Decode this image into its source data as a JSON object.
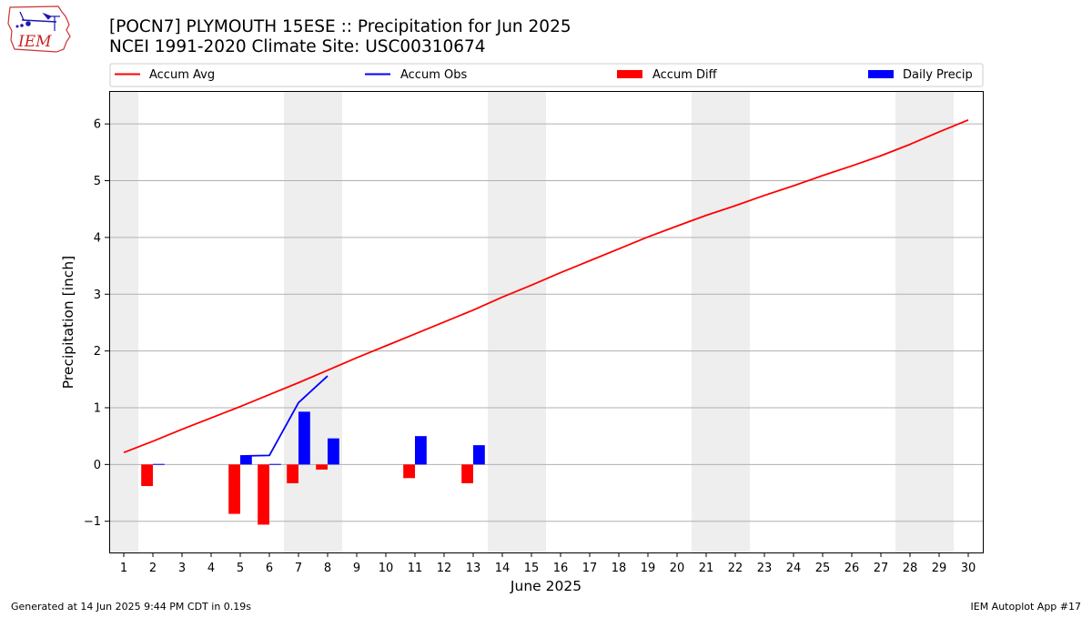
{
  "title_line1": "[POCN7] PLYMOUTH 15ESE :: Precipitation for Jun 2025",
  "title_line2": "NCEI 1991-2020 Climate Site: USC00310674",
  "logo_text": "IEM",
  "footer_left": "Generated at 14 Jun 2025 9:44 PM CDT in 0.19s",
  "footer_right": "IEM Autoplot App #17",
  "colors": {
    "accum_avg": "#ff0000",
    "accum_obs": "#0000ff",
    "accum_diff": "#ff0000",
    "daily_precip": "#0000ff",
    "weekend_band": "#eeeeee",
    "grid": "#b0b0b0"
  },
  "chart_data": {
    "type": "line",
    "xlabel": "June 2025",
    "ylabel": "Precipitation [inch]",
    "xlim": [
      0.5,
      30.5
    ],
    "ylim": [
      -1.55,
      6.58
    ],
    "x_ticks": [
      1,
      2,
      3,
      4,
      5,
      6,
      7,
      8,
      9,
      10,
      11,
      12,
      13,
      14,
      15,
      16,
      17,
      18,
      19,
      20,
      21,
      22,
      23,
      24,
      25,
      26,
      27,
      28,
      29,
      30
    ],
    "y_ticks": [
      -1,
      0,
      1,
      2,
      3,
      4,
      5,
      6
    ],
    "y_tick_labels": [
      "−1",
      "0",
      "1",
      "2",
      "3",
      "4",
      "5",
      "6"
    ],
    "grid": "y",
    "legend_position": "top",
    "legend": [
      "Accum Avg",
      "Accum Obs",
      "Accum Diff",
      "Daily Precip"
    ],
    "weekend_days": [
      1,
      7,
      8,
      14,
      15,
      21,
      22,
      28,
      29
    ],
    "series": [
      {
        "name": "Accum Avg",
        "type": "line",
        "x": [
          1,
          2,
          3,
          4,
          5,
          6,
          7,
          8,
          9,
          10,
          11,
          12,
          13,
          14,
          15,
          16,
          17,
          18,
          19,
          20,
          21,
          22,
          23,
          24,
          25,
          26,
          27,
          28,
          29,
          30
        ],
        "values": [
          0.21,
          0.41,
          0.62,
          0.82,
          1.02,
          1.23,
          1.44,
          1.66,
          1.88,
          2.09,
          2.3,
          2.51,
          2.72,
          2.95,
          3.16,
          3.38,
          3.59,
          3.8,
          4.01,
          4.2,
          4.39,
          4.56,
          4.74,
          4.91,
          5.09,
          5.26,
          5.44,
          5.64,
          5.86,
          6.07
        ]
      },
      {
        "name": "Accum Obs",
        "type": "line",
        "x": [
          5,
          6,
          7,
          8
        ],
        "values": [
          0.15,
          0.16,
          1.09,
          1.56
        ]
      },
      {
        "name": "Accum Diff",
        "type": "bar",
        "x": [
          2,
          5,
          6,
          7,
          8,
          11,
          13
        ],
        "values": [
          -0.38,
          -0.87,
          -1.06,
          -0.33,
          -0.09,
          -0.24,
          -0.33
        ]
      },
      {
        "name": "Daily Precip",
        "type": "bar",
        "x": [
          2,
          5,
          6,
          7,
          8,
          11,
          13
        ],
        "values": [
          0.01,
          0.15,
          0.01,
          0.93,
          0.46,
          0.5,
          0.34
        ]
      }
    ]
  }
}
